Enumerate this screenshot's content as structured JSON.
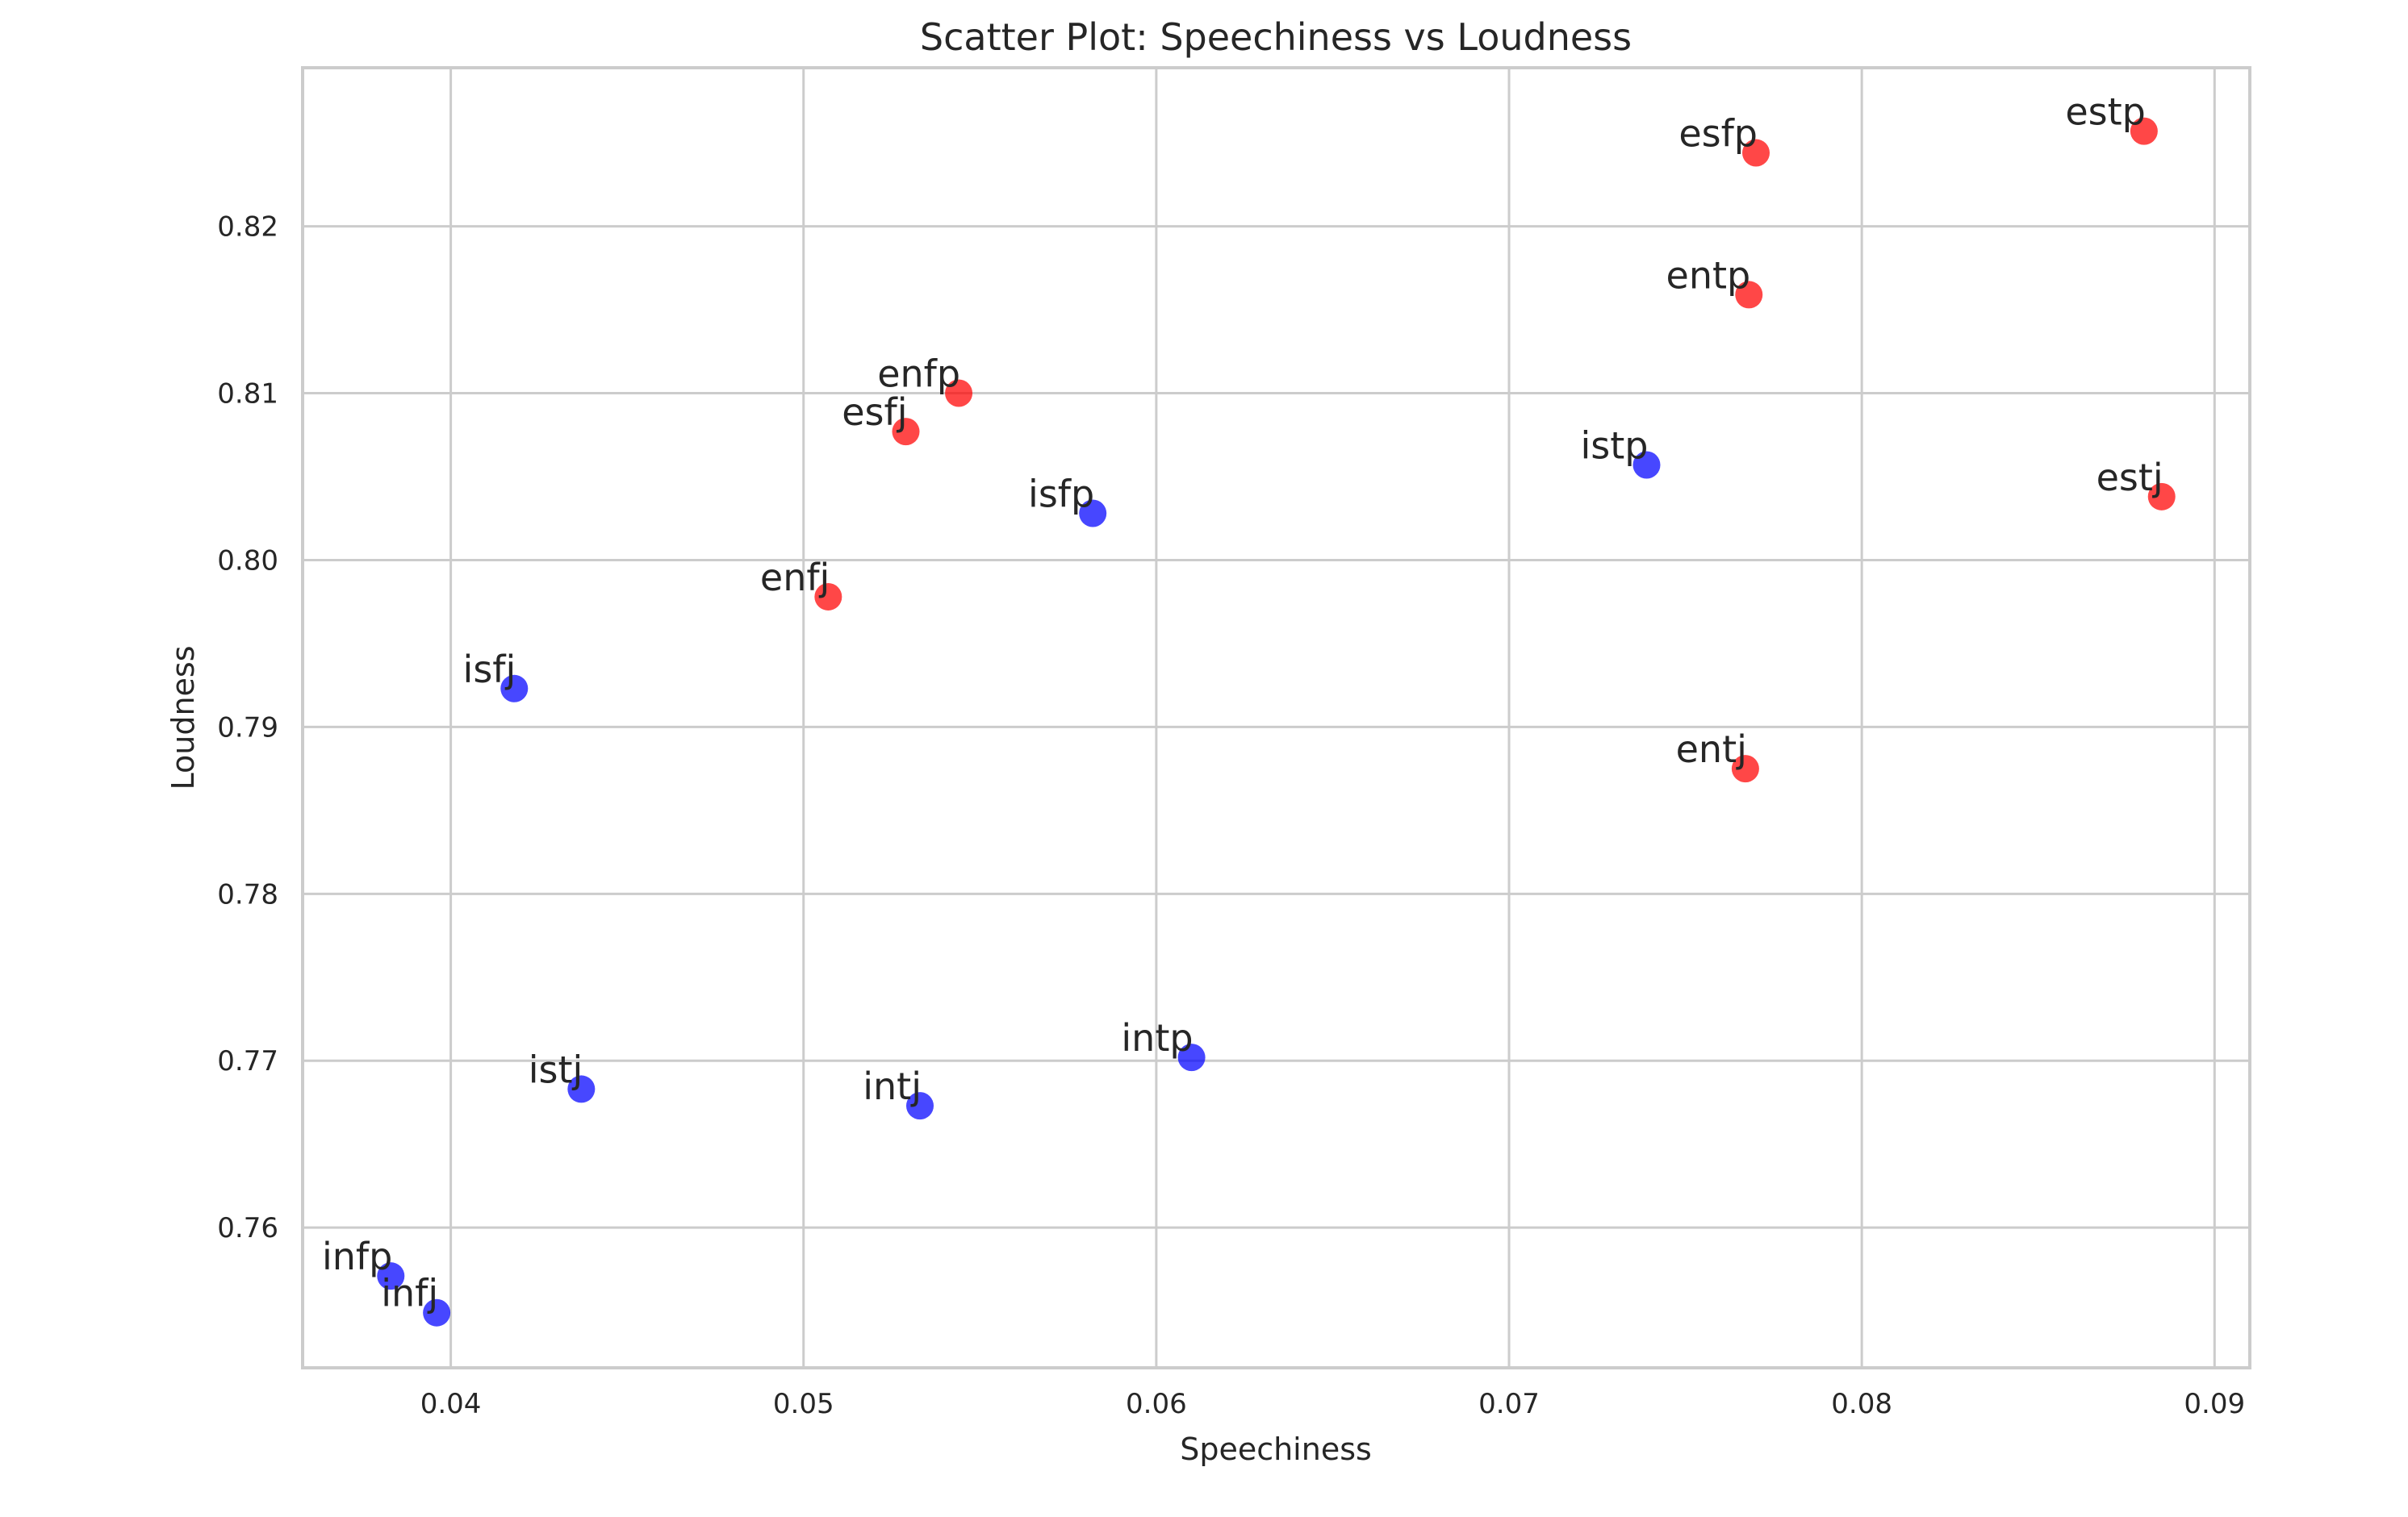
{
  "chart_data": {
    "type": "scatter",
    "title": "Scatter Plot: Speechiness vs Loudness",
    "xlabel": "Speechiness",
    "ylabel": "Loudness",
    "xlim": [
      0.0358,
      0.091
    ],
    "ylim": [
      0.7516,
      0.8295
    ],
    "xticks": [
      0.04,
      0.05,
      0.06,
      0.07,
      0.08,
      0.09
    ],
    "xtick_labels": [
      "0.04",
      "0.05",
      "0.06",
      "0.07",
      "0.08",
      "0.09"
    ],
    "yticks": [
      0.76,
      0.77,
      0.78,
      0.79,
      0.8,
      0.81,
      0.82
    ],
    "ytick_labels": [
      "0.76",
      "0.77",
      "0.78",
      "0.79",
      "0.80",
      "0.81",
      "0.82"
    ],
    "grid": true,
    "colors": {
      "E": "#ff0000",
      "I": "#0000ff"
    },
    "points": [
      {
        "label": "estp",
        "x": 0.088,
        "y": 0.8257,
        "group": "E"
      },
      {
        "label": "esfp",
        "x": 0.077,
        "y": 0.8244,
        "group": "E"
      },
      {
        "label": "entp",
        "x": 0.0768,
        "y": 0.8159,
        "group": "E"
      },
      {
        "label": "enfp",
        "x": 0.0544,
        "y": 0.81,
        "group": "E"
      },
      {
        "label": "esfj",
        "x": 0.0529,
        "y": 0.8077,
        "group": "E"
      },
      {
        "label": "istp",
        "x": 0.0739,
        "y": 0.8057,
        "group": "I"
      },
      {
        "label": "estj",
        "x": 0.0885,
        "y": 0.8038,
        "group": "E"
      },
      {
        "label": "isfp",
        "x": 0.0582,
        "y": 0.8028,
        "group": "I"
      },
      {
        "label": "enfj",
        "x": 0.0507,
        "y": 0.7978,
        "group": "E"
      },
      {
        "label": "isfj",
        "x": 0.0418,
        "y": 0.7923,
        "group": "I"
      },
      {
        "label": "entj",
        "x": 0.0767,
        "y": 0.7875,
        "group": "E"
      },
      {
        "label": "intp",
        "x": 0.061,
        "y": 0.7702,
        "group": "I"
      },
      {
        "label": "istj",
        "x": 0.0437,
        "y": 0.7683,
        "group": "I"
      },
      {
        "label": "intj",
        "x": 0.0533,
        "y": 0.7673,
        "group": "I"
      },
      {
        "label": "infp",
        "x": 0.0383,
        "y": 0.7571,
        "group": "I"
      },
      {
        "label": "infj",
        "x": 0.0396,
        "y": 0.7549,
        "group": "I"
      }
    ]
  }
}
